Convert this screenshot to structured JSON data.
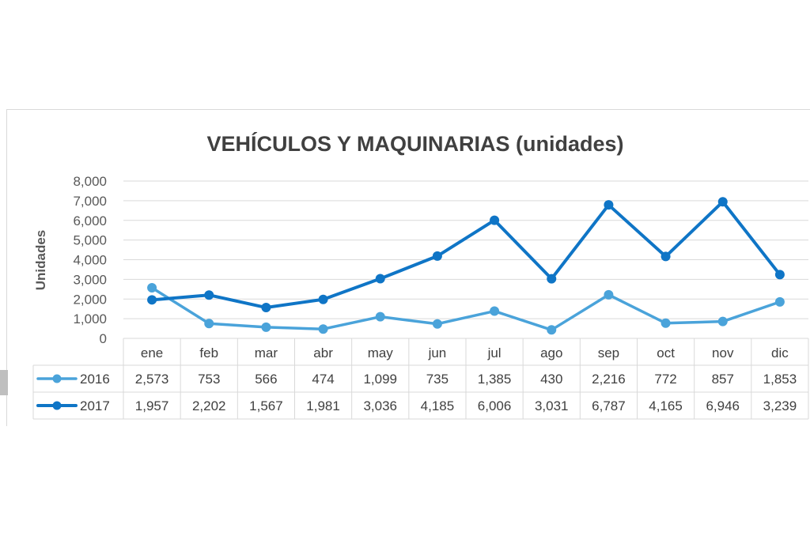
{
  "chart_data": {
    "type": "line",
    "title": "VEHÍCULOS Y MAQUINARIAS (unidades)",
    "ylabel": "Unidades",
    "xlabel": "",
    "ylim": [
      0,
      8000
    ],
    "yticks": [
      "0",
      "1,000",
      "2,000",
      "3,000",
      "4,000",
      "5,000",
      "6,000",
      "7,000",
      "8,000"
    ],
    "categories": [
      "ene",
      "feb",
      "mar",
      "abr",
      "may",
      "jun",
      "jul",
      "ago",
      "sep",
      "oct",
      "nov",
      "dic"
    ],
    "grid": true,
    "legend": "data table",
    "series": [
      {
        "name": "2016",
        "color": "#4aa3da",
        "values": [
          2573,
          753,
          566,
          474,
          1099,
          735,
          1385,
          430,
          2216,
          772,
          857,
          1853
        ],
        "labels": [
          "2,573",
          "753",
          "566",
          "474",
          "1,099",
          "735",
          "1,385",
          "430",
          "2,216",
          "772",
          "857",
          "1,853"
        ]
      },
      {
        "name": "2017",
        "color": "#0f75c6",
        "values": [
          1957,
          2202,
          1567,
          1981,
          3036,
          4185,
          6006,
          3031,
          6787,
          4165,
          6946,
          3239
        ],
        "labels": [
          "1,957",
          "2,202",
          "1,567",
          "1,981",
          "3,036",
          "4,185",
          "6,006",
          "3,031",
          "6,787",
          "4,165",
          "6,946",
          "3,239"
        ]
      }
    ]
  }
}
